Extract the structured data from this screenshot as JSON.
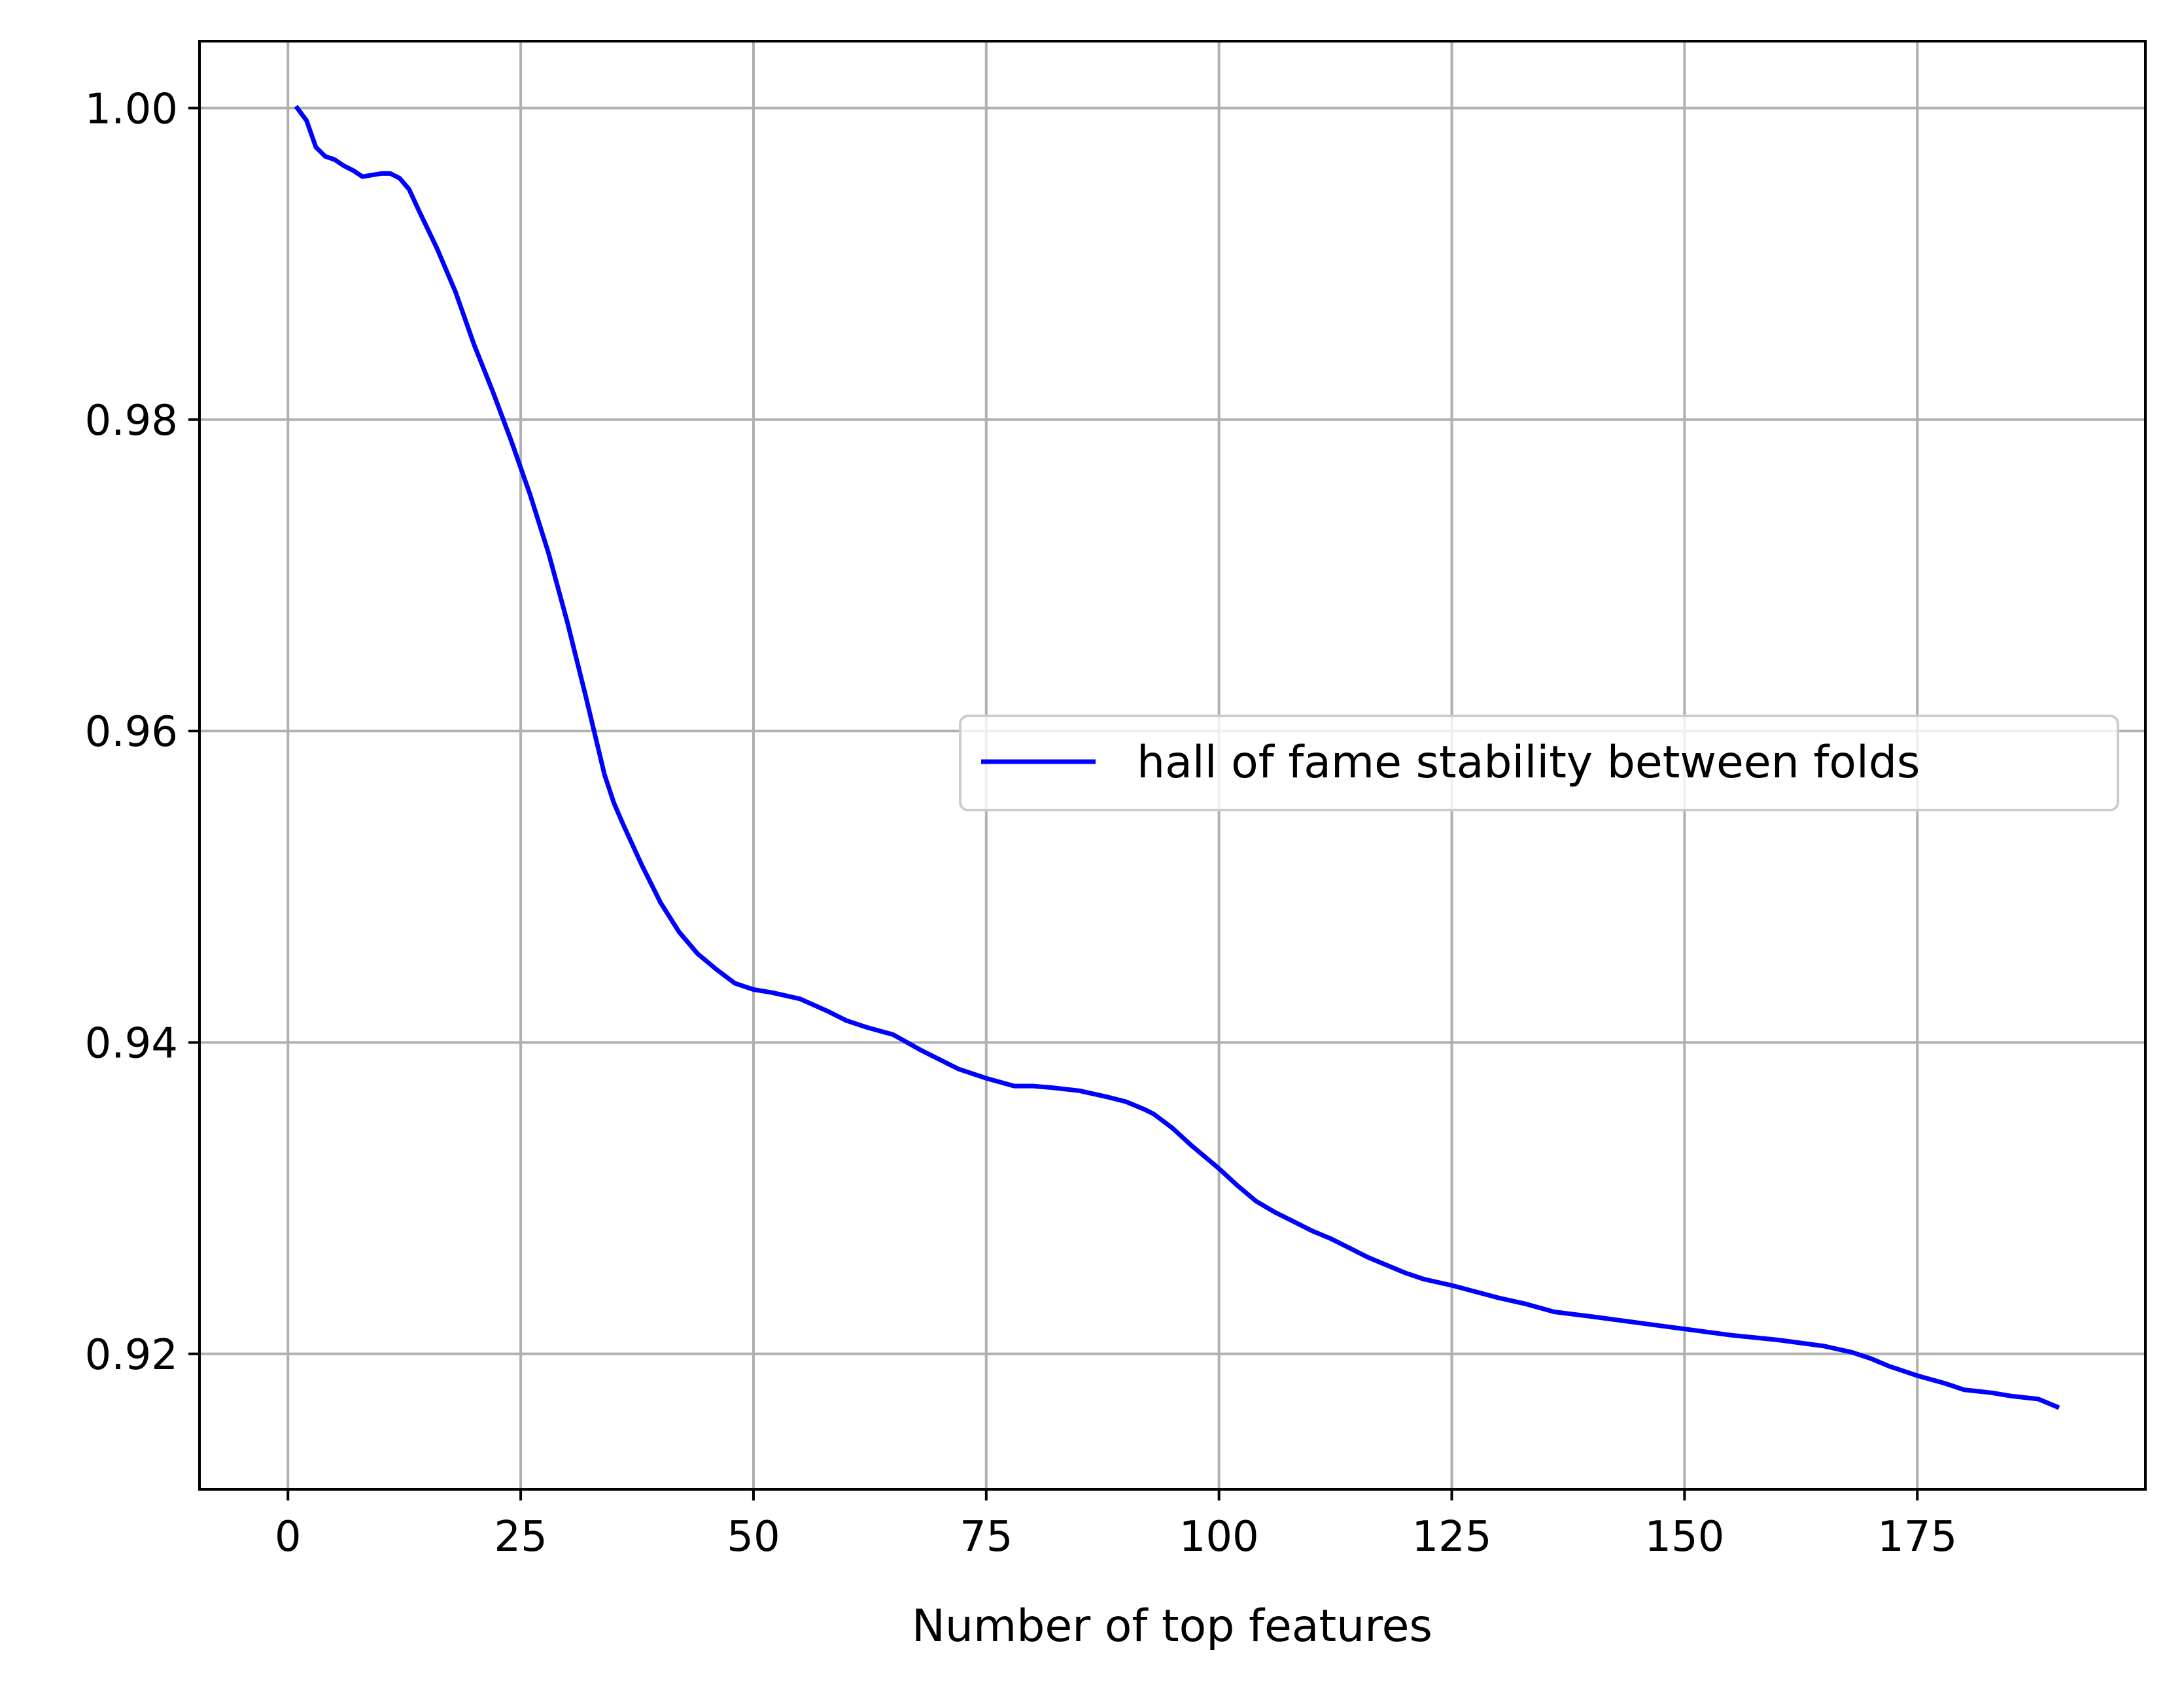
{
  "chart_data": {
    "type": "line",
    "title": "",
    "xlabel": "Number of top features",
    "ylabel": "",
    "xlim": [
      -9.5,
      199.5
    ],
    "ylim": [
      0.9113,
      1.0043
    ],
    "x_ticks": [
      0,
      25,
      50,
      75,
      100,
      125,
      150,
      175
    ],
    "x_tick_labels": [
      "0",
      "25",
      "50",
      "75",
      "100",
      "125",
      "150",
      "175"
    ],
    "y_ticks": [
      0.92,
      0.94,
      0.96,
      0.98,
      1.0
    ],
    "y_tick_labels": [
      "0.92",
      "0.94",
      "0.96",
      "0.98",
      "1.00"
    ],
    "grid": true,
    "legend_position": "center-right",
    "series": [
      {
        "name": "hall of fame stability between folds",
        "color": "#0000ff",
        "x": [
          1,
          2,
          3,
          4,
          5,
          6,
          7,
          8,
          9,
          10,
          11,
          12,
          13,
          14,
          16,
          18,
          20,
          22,
          24,
          26,
          28,
          30,
          32,
          34,
          35,
          36,
          38,
          40,
          42,
          44,
          46,
          48,
          50,
          52,
          55,
          58,
          60,
          62,
          65,
          68,
          70,
          72,
          75,
          78,
          80,
          82,
          85,
          88,
          90,
          92,
          93,
          95,
          97,
          100,
          102,
          104,
          106,
          108,
          110,
          112,
          114,
          116,
          118,
          120,
          122,
          125,
          130,
          133,
          136,
          140,
          145,
          150,
          155,
          160,
          165,
          168,
          170,
          172,
          175,
          178,
          180,
          183,
          185,
          188,
          190
        ],
        "y": [
          1.0,
          0.9992,
          0.9975,
          0.9969,
          0.9967,
          0.9963,
          0.996,
          0.9956,
          0.9957,
          0.9958,
          0.9958,
          0.9955,
          0.9948,
          0.9935,
          0.991,
          0.9882,
          0.9848,
          0.9818,
          0.9786,
          0.9752,
          0.9714,
          0.967,
          0.9622,
          0.9572,
          0.9554,
          0.954,
          0.9514,
          0.949,
          0.9471,
          0.9457,
          0.9447,
          0.9438,
          0.9434,
          0.9432,
          0.9428,
          0.942,
          0.9414,
          0.941,
          0.9405,
          0.9395,
          0.9389,
          0.9383,
          0.9377,
          0.9372,
          0.9372,
          0.9371,
          0.9369,
          0.9365,
          0.9362,
          0.9357,
          0.9354,
          0.9345,
          0.9334,
          0.9319,
          0.9308,
          0.9298,
          0.9291,
          0.9285,
          0.9279,
          0.9274,
          0.9268,
          0.9262,
          0.9257,
          0.9252,
          0.9248,
          0.9244,
          0.9236,
          0.9232,
          0.9227,
          0.9224,
          0.922,
          0.9216,
          0.9212,
          0.9209,
          0.9205,
          0.9201,
          0.9197,
          0.9192,
          0.9186,
          0.9181,
          0.9177,
          0.9175,
          0.9173,
          0.9171,
          0.9166
        ]
      }
    ]
  }
}
